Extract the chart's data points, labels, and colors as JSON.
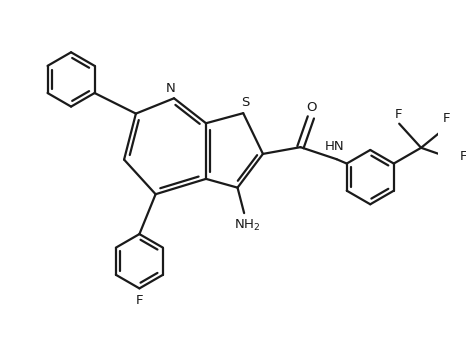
{
  "bg_color": "#ffffff",
  "line_color": "#1a1a1a",
  "line_width": 1.6,
  "font_size": 9.5,
  "fig_width": 4.66,
  "fig_height": 3.56,
  "xlim": [
    -0.5,
    9.0
  ],
  "ylim": [
    -4.2,
    3.8
  ]
}
